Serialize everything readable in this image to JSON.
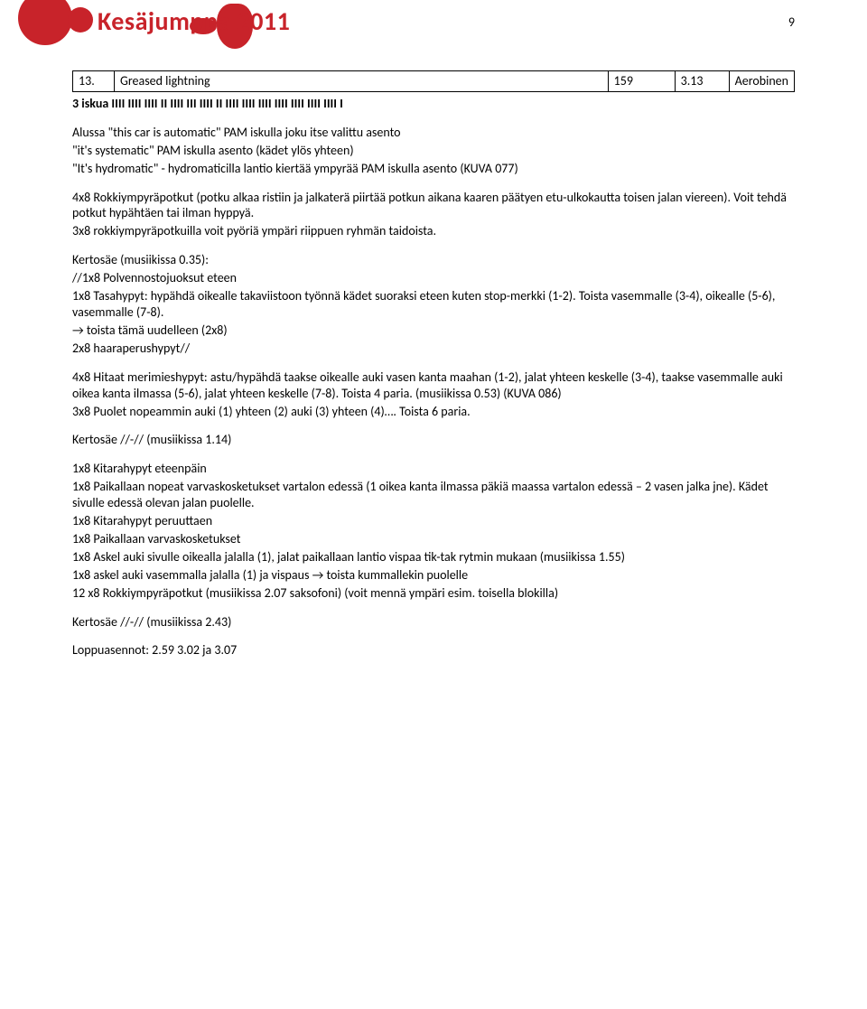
{
  "header_title": "Kesäjumppa 2011",
  "page_number": "9",
  "table": {
    "num": "13.",
    "name": "Greased lightning",
    "col3": "159",
    "col4": "3.13",
    "col5": "Aerobinen"
  },
  "counts_line": "3 iskua IIII IIII IIII II  IIII III IIII II IIII IIII IIII IIII IIII IIII IIII I",
  "intro": [
    "Alussa \"this car is automatic\" PAM iskulla joku itse valittu asento",
    "\"it's systematic\" PAM iskulla asento (kädet ylös yhteen)",
    "\"It's hydromatic\" - hydromaticilla lantio kiertää ympyrää PAM iskulla asento (KUVA 077)"
  ],
  "block1": [
    "4x8 Rokkiympyräpotkut (potku alkaa ristiin ja jalkaterä piirtää potkun aikana kaaren päätyen etu-ulkokautta toisen jalan viereen). Voit tehdä potkut hypähtäen tai ilman hyppyä.",
    "3x8 rokkiympyräpotkuilla voit pyöriä ympäri riippuen ryhmän taidoista."
  ],
  "kertosae_title": "Kertosäe (musiikissa 0.35):",
  "kertosae_lines": [
    "//1x8 Polvennostojuoksut eteen",
    "1x8 Tasahypyt: hypähdä oikealle takaviistoon työnnä kädet suoraksi eteen kuten stop-merkki (1-2). Toista vasemmalle (3-4), oikealle (5-6), vasemmalle (7-8).",
    "→ toista tämä uudelleen (2x8)",
    "2x8 haaraperushypyt//"
  ],
  "block2": [
    "4x8 Hitaat merimieshypyt: astu/hypähdä taakse oikealle auki vasen kanta maahan (1-2), jalat yhteen keskelle (3-4), taakse vasemmalle auki oikea kanta ilmassa (5-6), jalat yhteen keskelle (7-8). Toista 4 paria. (musiikissa 0.53) (KUVA 086)",
    "3x8 Puolet nopeammin auki (1) yhteen (2) auki (3) yhteen (4)…. Toista 6 paria."
  ],
  "kertosae2": "Kertosäe //-// (musiikissa 1.14)",
  "block3": [
    "1x8 Kitarahypyt eteenpäin",
    "1x8 Paikallaan nopeat varvaskosketukset vartalon edessä (1 oikea kanta ilmassa päkiä maassa vartalon edessä – 2 vasen jalka jne). Kädet sivulle edessä olevan jalan puolelle.",
    "1x8 Kitarahypyt peruuttaen",
    "1x8 Paikallaan varvaskosketukset",
    "1x8 Askel auki sivulle oikealla jalalla (1), jalat paikallaan lantio vispaa tik-tak rytmin mukaan (musiikissa 1.55)",
    "1x8 askel auki vasemmalla jalalla (1) ja vispaus → toista kummallekin puolelle",
    "12 x8 Rokkiympyräpotkut (musiikissa 2.07 saksofoni) (voit mennä ympäri esim. toisella blokilla)"
  ],
  "kertosae3": "Kertosäe //-// (musiikissa 2.43)",
  "loppu": "Loppuasennot: 2.59 3.02 ja 3.07"
}
